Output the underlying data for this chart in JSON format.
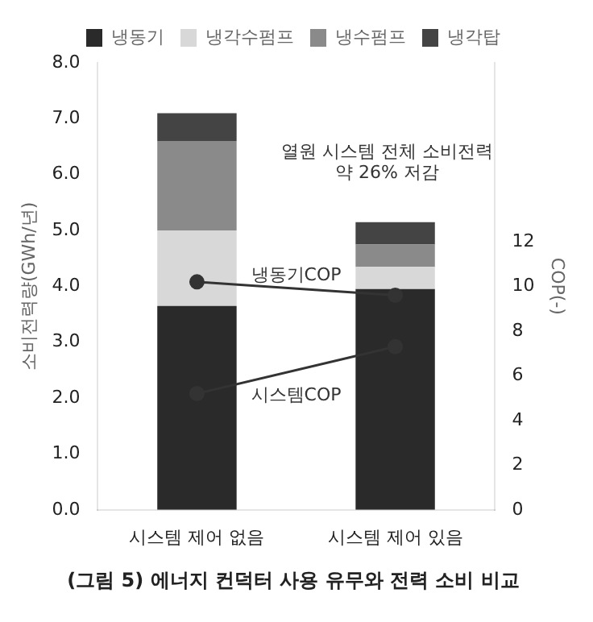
{
  "chart_data": {
    "type": "bar",
    "title": "(그림 5) 에너지 컨덕터 사용 유무와 전력 소비 비교",
    "categories": [
      "시스템 제어 없음",
      "시스템 제어 있음"
    ],
    "stacked": true,
    "ylabel": "소비전력량(GWh/년)",
    "y2label": "COP(-)",
    "ylim": [
      0,
      8
    ],
    "yticks": [
      {
        "value": 0,
        "label": "0.0"
      },
      {
        "value": 1,
        "label": "1.0"
      },
      {
        "value": 2,
        "label": "2.0"
      },
      {
        "value": 3,
        "label": "3.0"
      },
      {
        "value": 4,
        "label": "4.0"
      },
      {
        "value": 5,
        "label": "5.0"
      },
      {
        "value": 6,
        "label": "6.0"
      },
      {
        "value": 7,
        "label": "7.0"
      },
      {
        "value": 8,
        "label": "8.0"
      }
    ],
    "y2lim": [
      0,
      20
    ],
    "y2ticks": [
      0,
      2,
      4,
      6,
      8,
      10,
      12
    ],
    "legend": "top",
    "grid": false,
    "marker": "circle",
    "series": [
      {
        "name": "냉동기",
        "color": "#2a2a2a",
        "values": [
          3.65,
          3.95
        ]
      },
      {
        "name": "냉각수펌프",
        "color": "#d8d8d8",
        "values": [
          1.35,
          0.4
        ]
      },
      {
        "name": "냉수펌프",
        "color": "#8a8a8a",
        "values": [
          1.6,
          0.4
        ]
      },
      {
        "name": "냉각탑",
        "color": "#444444",
        "values": [
          0.5,
          0.4
        ]
      },
      {
        "name": "냉동기COP",
        "type": "line",
        "axis": "y2",
        "color": "#333333",
        "values": [
          10.2,
          9.6
        ]
      },
      {
        "name": "시스템COP",
        "type": "line",
        "axis": "y2",
        "color": "#333333",
        "values": [
          5.2,
          7.3
        ]
      }
    ],
    "annotations": [
      "열원 시스템 전체 소비전력 약 26% 저감"
    ]
  }
}
